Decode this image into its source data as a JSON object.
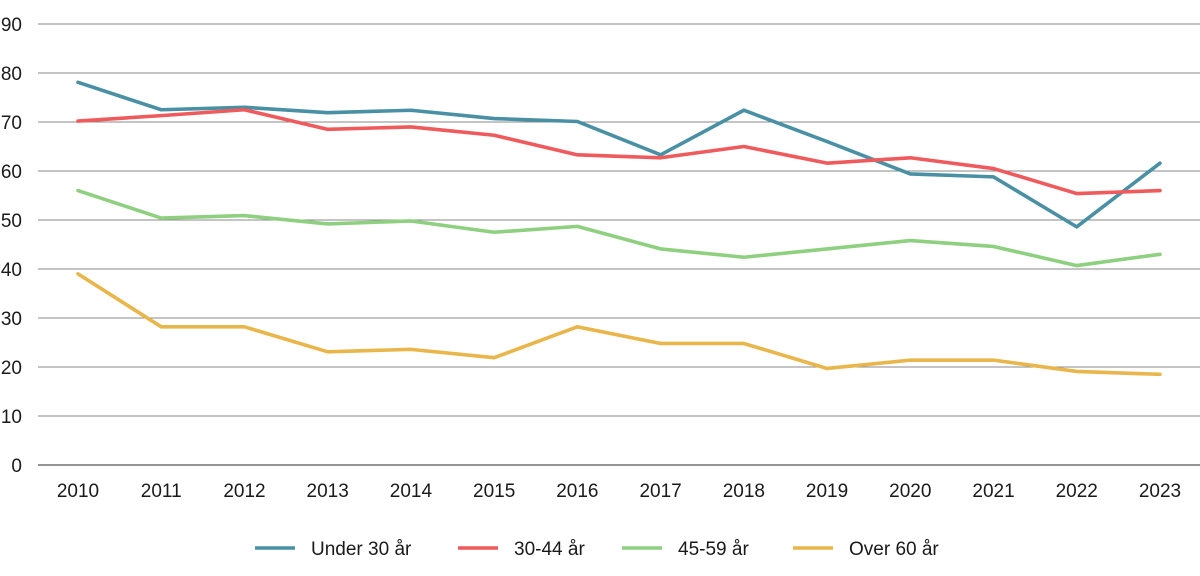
{
  "chart_data": {
    "type": "line",
    "title": "",
    "xlabel": "",
    "ylabel": "",
    "ylim": [
      0,
      90
    ],
    "yticks": [
      0,
      10,
      20,
      30,
      40,
      50,
      60,
      70,
      80,
      90
    ],
    "grid": true,
    "legend_position": "bottom",
    "categories": [
      "2010",
      "2011",
      "2012",
      "2013",
      "2014",
      "2015",
      "2016",
      "2017",
      "2018",
      "2019",
      "2020",
      "2021",
      "2022",
      "2023"
    ],
    "series": [
      {
        "name": "Under 30 år",
        "color": "#4a90a4",
        "values": [
          78.1,
          72.5,
          73.0,
          71.9,
          72.4,
          70.7,
          70.1,
          63.3,
          72.4,
          66.0,
          59.4,
          58.8,
          48.6,
          61.6
        ]
      },
      {
        "name": "30-44 år",
        "color": "#ef5a5c",
        "values": [
          70.2,
          71.3,
          72.5,
          68.5,
          69.0,
          67.3,
          63.3,
          62.7,
          65.0,
          61.6,
          62.7,
          60.5,
          55.4,
          56.0
        ]
      },
      {
        "name": "45-59 år",
        "color": "#8ed080",
        "values": [
          56.0,
          50.4,
          50.9,
          49.2,
          49.8,
          47.5,
          48.7,
          44.1,
          42.4,
          44.1,
          45.8,
          44.6,
          40.7,
          43.0
        ]
      },
      {
        "name": "Over 60 år",
        "color": "#e8b64a",
        "values": [
          39.0,
          28.2,
          28.2,
          23.1,
          23.6,
          21.9,
          28.2,
          24.8,
          24.8,
          19.7,
          21.4,
          21.4,
          19.1,
          18.5
        ]
      }
    ]
  }
}
